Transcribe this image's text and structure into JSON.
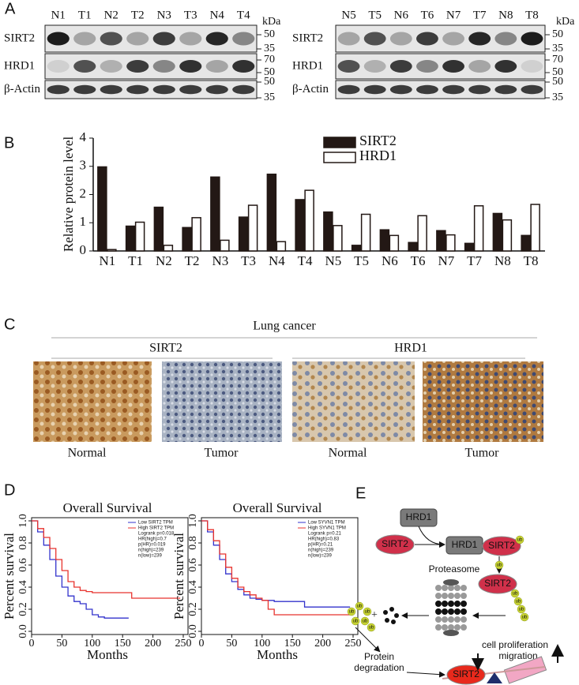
{
  "panel_labels": [
    "A",
    "B",
    "C",
    "D",
    "E"
  ],
  "blots": [
    {
      "lanes": [
        "N1",
        "T1",
        "N2",
        "T2",
        "N3",
        "T3",
        "N4",
        "T4"
      ],
      "rows": [
        "SIRT2",
        "HRD1",
        "β-Actin"
      ],
      "unit": "kDa",
      "markers": [
        "50",
        "35",
        "70",
        "50",
        "50",
        "35"
      ]
    },
    {
      "lanes": [
        "N5",
        "T5",
        "N6",
        "T6",
        "N7",
        "T7",
        "N8",
        "T8"
      ],
      "rows": [
        "SIRT2",
        "HRD1",
        "β-Actin"
      ],
      "unit": "kDa",
      "markers": [
        "50",
        "35",
        "70",
        "50",
        "50",
        "35"
      ]
    }
  ],
  "chart_data": [
    {
      "type": "bar",
      "y_label": "Relative protein level",
      "categories": [
        "N1",
        "T1",
        "N2",
        "T2",
        "N3",
        "T3",
        "N4",
        "T4",
        "N5",
        "T5",
        "N6",
        "T6",
        "N7",
        "T7",
        "N8",
        "T8"
      ],
      "series": [
        {
          "name": "SIRT2",
          "color": "#231815",
          "values": [
            2.98,
            0.88,
            1.55,
            0.83,
            2.62,
            1.2,
            2.72,
            1.82,
            1.38,
            0.2,
            0.75,
            0.3,
            0.72,
            0.27,
            1.33,
            0.55
          ]
        },
        {
          "name": "HRD1",
          "color": "#ffffff",
          "values": [
            0.05,
            1.02,
            0.2,
            1.18,
            0.38,
            1.62,
            0.33,
            2.15,
            0.9,
            1.3,
            0.55,
            1.25,
            0.57,
            1.6,
            1.1,
            1.65
          ]
        }
      ],
      "ylim": [
        0,
        4
      ],
      "yticks": [
        0,
        1,
        2,
        3,
        4
      ],
      "legend": "top"
    },
    {
      "type": "line",
      "title": "Overall Survival",
      "x_label": "Months",
      "y_label": "Percent survival",
      "series": [
        {
          "name": "Low SIRT2 TPM",
          "color": "#3333cc",
          "x": [
            0,
            10,
            20,
            30,
            40,
            50,
            60,
            70,
            80,
            90,
            100,
            110,
            120,
            130,
            150,
            160
          ],
          "values": [
            1,
            0.9,
            0.78,
            0.65,
            0.5,
            0.4,
            0.32,
            0.27,
            0.25,
            0.2,
            0.15,
            0.13,
            0.12,
            0.12,
            0.12,
            0.12
          ]
        },
        {
          "name": "High SIRT2 TPM",
          "color": "#e8332e",
          "x": [
            0,
            10,
            20,
            30,
            40,
            50,
            60,
            70,
            80,
            90,
            100,
            120,
            140,
            165,
            200,
            245
          ],
          "values": [
            1,
            0.93,
            0.85,
            0.75,
            0.65,
            0.55,
            0.45,
            0.4,
            0.37,
            0.36,
            0.35,
            0.35,
            0.35,
            0.3,
            0.3,
            0.3
          ]
        }
      ],
      "annotations": [
        "Logrank p=0.018",
        "HR(high)=0.7",
        "p(HR)=0.019",
        "n(high)=239",
        "n(low)=239"
      ],
      "xlim": [
        0,
        250
      ],
      "xticks": [
        0,
        50,
        100,
        150,
        200,
        250
      ],
      "ylim": [
        0,
        1
      ],
      "yticks": [
        {
          "value": 0,
          "label": "0.0"
        },
        0.2,
        0.4,
        0.6,
        0.8,
        {
          "value": 1,
          "label": "1.0"
        }
      ],
      "legend": "top right"
    },
    {
      "type": "line",
      "title": "Overall Survival",
      "x_label": "Months",
      "y_label": "Percent survival",
      "series": [
        {
          "name": "Low SYVN1 TPM",
          "color": "#3333cc",
          "x": [
            0,
            10,
            20,
            30,
            40,
            50,
            60,
            70,
            80,
            90,
            100,
            120,
            170,
            245
          ],
          "values": [
            1,
            0.9,
            0.78,
            0.65,
            0.52,
            0.45,
            0.38,
            0.33,
            0.3,
            0.29,
            0.28,
            0.27,
            0.22,
            0.22
          ]
        },
        {
          "name": "High SYVN1 TPM",
          "color": "#e8332e",
          "x": [
            0,
            10,
            20,
            30,
            40,
            50,
            60,
            70,
            80,
            90,
            100,
            110,
            120,
            245
          ],
          "values": [
            1,
            0.92,
            0.82,
            0.7,
            0.58,
            0.48,
            0.4,
            0.36,
            0.33,
            0.3,
            0.28,
            0.2,
            0.15,
            0.15
          ]
        }
      ],
      "annotations": [
        "Logrank p=0.21",
        "HR(high)=0.83",
        "p(HR)=0.21",
        "n(high)=239",
        "n(low)=239"
      ],
      "xlim": [
        0,
        250
      ],
      "xticks": [
        0,
        50,
        100,
        150,
        200,
        250
      ],
      "ylim": [
        0,
        1
      ],
      "yticks": [
        {
          "value": 0,
          "label": "0.0"
        },
        0.2,
        0.4,
        0.6,
        0.8,
        {
          "value": 1,
          "label": "1.0"
        }
      ],
      "legend": "top right"
    }
  ],
  "ihc": {
    "title": "Lung cancer",
    "groups": [
      {
        "name": "SIRT2",
        "images": [
          "Normal",
          "Tumor"
        ]
      },
      {
        "name": "HRD1",
        "images": [
          "Normal",
          "Tumor"
        ]
      }
    ]
  },
  "diagram": {
    "hrd1_free": "HRD1",
    "sirt2_free": "SIRT2",
    "hrd1_bound": "HRD1",
    "sirt2_bound": "SIRT2",
    "proteasome": "Proteasome",
    "sirt2_ub": "SIRT2",
    "outcome": [
      "cell proliferation",
      "migration"
    ],
    "degradation": [
      "Protein",
      "degradation"
    ],
    "sirt2_low": "SIRT2",
    "ub_tags": [
      "ub",
      "ub",
      "ub",
      "ub",
      "ub",
      "ub",
      "ub",
      "ub",
      "ub",
      "ub",
      "ub",
      "ub"
    ]
  }
}
